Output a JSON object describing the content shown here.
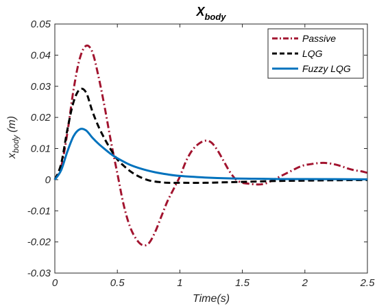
{
  "chart_data": {
    "type": "line",
    "title": "X",
    "title_subscript": "body",
    "xlabel": "Time(s)",
    "ylabel": "x",
    "ylabel_subscript": "body",
    "ylabel_unit": "(m)",
    "xlim": [
      0,
      2.5
    ],
    "ylim": [
      -0.03,
      0.05
    ],
    "x_ticks": [
      "0",
      "0.5",
      "1",
      "1.5",
      "2",
      "2.5"
    ],
    "x_tick_values": [
      0,
      0.5,
      1,
      1.5,
      2,
      2.5
    ],
    "y_ticks": [
      "-0.03",
      "-0.02",
      "-0.01",
      "0",
      "0.01",
      "0.02",
      "0.03",
      "0.04",
      "0.05"
    ],
    "y_tick_values": [
      -0.03,
      -0.02,
      -0.01,
      0,
      0.01,
      0.02,
      0.03,
      0.04,
      0.05
    ],
    "grid": false,
    "legend_position": "top-right",
    "series": [
      {
        "name": "Passive",
        "color": "#a2142f",
        "dash": "dash-dot",
        "points": [
          [
            0,
            0
          ],
          [
            0.05,
            0.004
          ],
          [
            0.1,
            0.015
          ],
          [
            0.15,
            0.029
          ],
          [
            0.2,
            0.039
          ],
          [
            0.25,
            0.043
          ],
          [
            0.3,
            0.041
          ],
          [
            0.35,
            0.033
          ],
          [
            0.4,
            0.023
          ],
          [
            0.45,
            0.012
          ],
          [
            0.5,
            0.002
          ],
          [
            0.55,
            -0.008
          ],
          [
            0.6,
            -0.015
          ],
          [
            0.65,
            -0.019
          ],
          [
            0.7,
            -0.021
          ],
          [
            0.75,
            -0.0205
          ],
          [
            0.8,
            -0.017
          ],
          [
            0.85,
            -0.012
          ],
          [
            0.9,
            -0.007
          ],
          [
            0.95,
            -0.003
          ],
          [
            1.0,
            0.001
          ],
          [
            1.05,
            0.006
          ],
          [
            1.1,
            0.0095
          ],
          [
            1.15,
            0.0115
          ],
          [
            1.2,
            0.0125
          ],
          [
            1.25,
            0.012
          ],
          [
            1.3,
            0.0095
          ],
          [
            1.35,
            0.006
          ],
          [
            1.4,
            0.0025
          ],
          [
            1.45,
            0.0
          ],
          [
            1.5,
            -0.001
          ],
          [
            1.55,
            -0.0013
          ],
          [
            1.6,
            -0.0015
          ],
          [
            1.65,
            -0.0015
          ],
          [
            1.7,
            -0.001
          ],
          [
            1.75,
            0.0
          ],
          [
            1.8,
            0.001
          ],
          [
            1.85,
            0.002
          ],
          [
            1.9,
            0.003
          ],
          [
            1.95,
            0.004
          ],
          [
            2.0,
            0.0047
          ],
          [
            2.05,
            0.005
          ],
          [
            2.1,
            0.0053
          ],
          [
            2.15,
            0.0054
          ],
          [
            2.2,
            0.0052
          ],
          [
            2.25,
            0.0048
          ],
          [
            2.3,
            0.0042
          ],
          [
            2.35,
            0.0035
          ],
          [
            2.4,
            0.003
          ],
          [
            2.45,
            0.0027
          ],
          [
            2.5,
            0.0022
          ]
        ]
      },
      {
        "name": "LQG",
        "color": "#000000",
        "dash": "dashed",
        "points": [
          [
            0,
            0
          ],
          [
            0.05,
            0.005
          ],
          [
            0.1,
            0.016
          ],
          [
            0.15,
            0.025
          ],
          [
            0.2,
            0.029
          ],
          [
            0.25,
            0.028
          ],
          [
            0.3,
            0.022
          ],
          [
            0.35,
            0.017
          ],
          [
            0.4,
            0.013
          ],
          [
            0.45,
            0.0095
          ],
          [
            0.5,
            0.0065
          ],
          [
            0.55,
            0.0045
          ],
          [
            0.6,
            0.0028
          ],
          [
            0.65,
            0.0015
          ],
          [
            0.7,
            0.0005
          ],
          [
            0.75,
            -0.0002
          ],
          [
            0.8,
            -0.0006
          ],
          [
            0.85,
            -0.0008
          ],
          [
            0.9,
            -0.001
          ],
          [
            1.0,
            -0.001
          ],
          [
            1.2,
            -0.001
          ],
          [
            1.4,
            -0.0008
          ],
          [
            1.6,
            -0.0006
          ],
          [
            1.8,
            -0.0004
          ],
          [
            2.0,
            -0.0003
          ],
          [
            2.2,
            -0.0002
          ],
          [
            2.5,
            -0.0001
          ]
        ]
      },
      {
        "name": "Fuzzy LQG",
        "color": "#0072bd",
        "dash": "solid",
        "points": [
          [
            0,
            0
          ],
          [
            0.05,
            0.003
          ],
          [
            0.1,
            0.009
          ],
          [
            0.15,
            0.014
          ],
          [
            0.2,
            0.0162
          ],
          [
            0.25,
            0.0158
          ],
          [
            0.3,
            0.0135
          ],
          [
            0.35,
            0.0115
          ],
          [
            0.4,
            0.0098
          ],
          [
            0.45,
            0.0082
          ],
          [
            0.5,
            0.0069
          ],
          [
            0.6,
            0.0048
          ],
          [
            0.7,
            0.0034
          ],
          [
            0.8,
            0.0024
          ],
          [
            0.9,
            0.0017
          ],
          [
            1.0,
            0.0012
          ],
          [
            1.2,
            0.0007
          ],
          [
            1.4,
            0.0004
          ],
          [
            1.6,
            0.0003
          ],
          [
            1.8,
            0.0002
          ],
          [
            2.0,
            0.0002
          ],
          [
            2.5,
            0.0001
          ]
        ]
      }
    ]
  }
}
